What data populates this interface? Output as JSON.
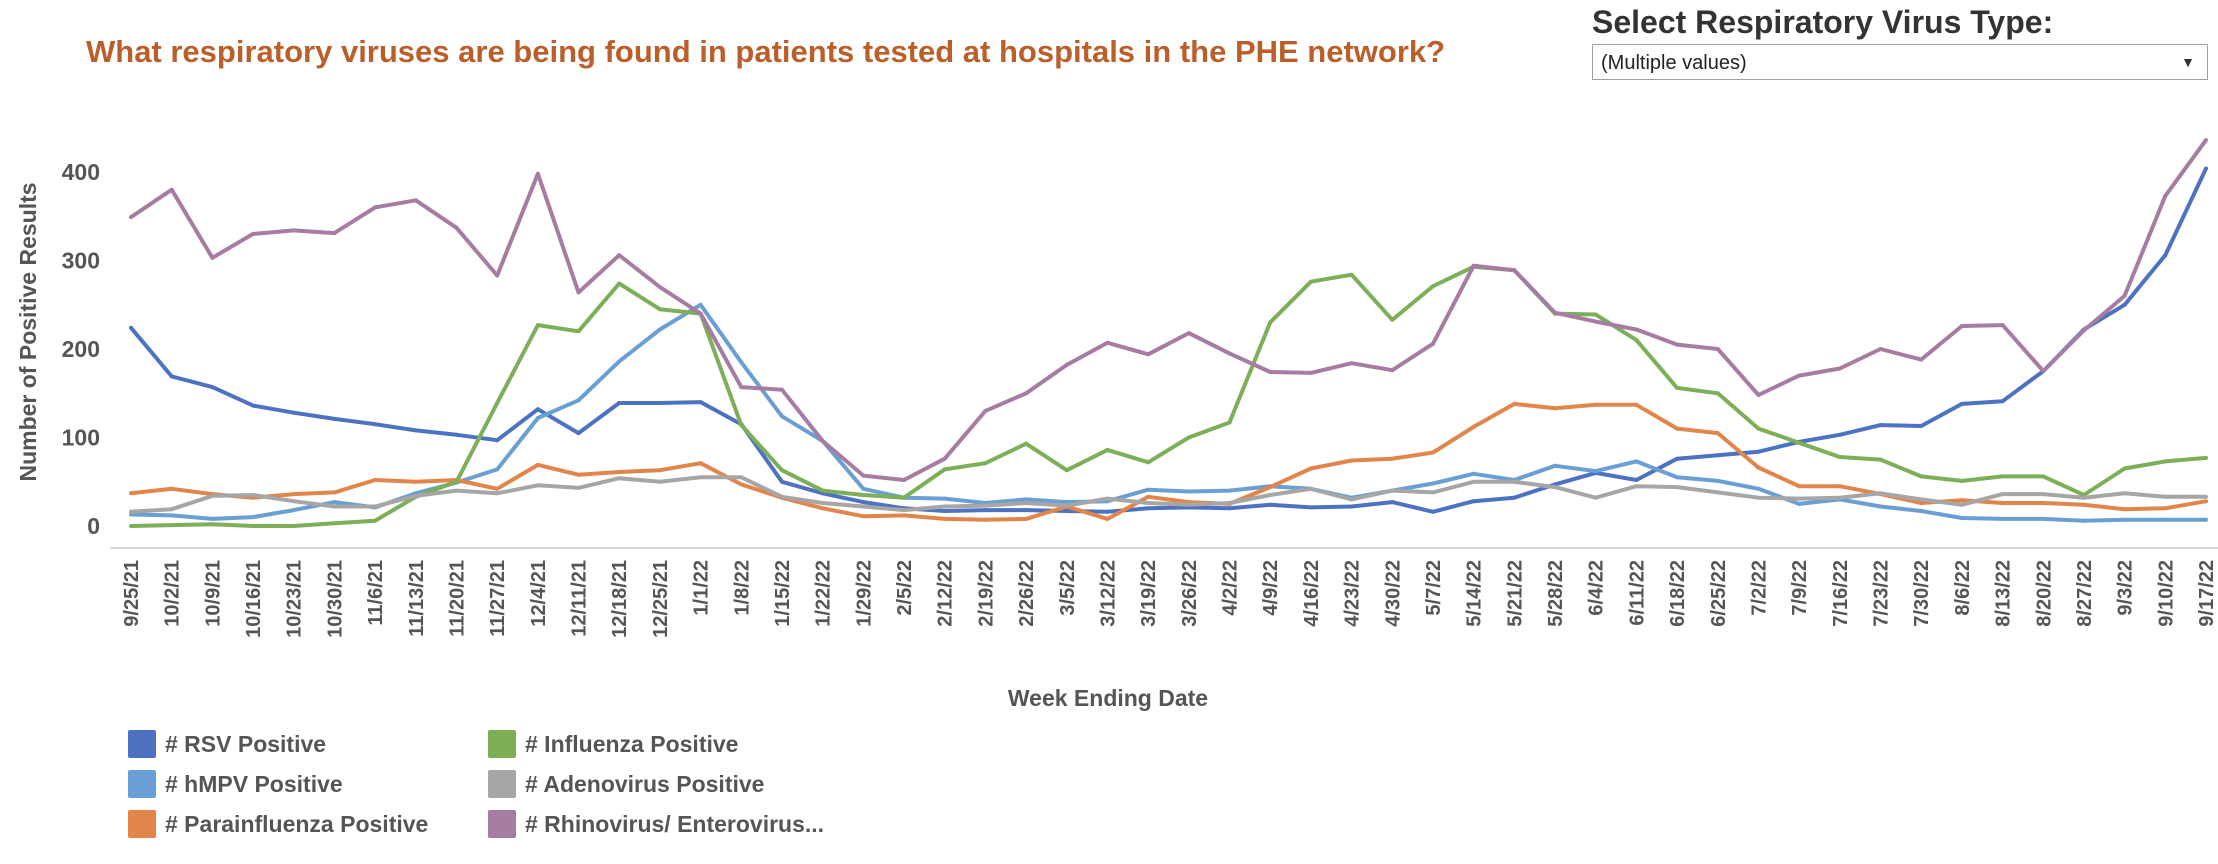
{
  "header": {
    "title": "What respiratory viruses are being found in patients tested at hospitals in the PHE network?"
  },
  "filter": {
    "label": "Select Respiratory Virus Type:",
    "selected_value": "(Multiple values)",
    "dropdown_icon": "caret-down-icon"
  },
  "chart_data": {
    "type": "line",
    "title": "What respiratory viruses are being found in patients tested at hospitals in the PHE network?",
    "xlabel": "Week Ending Date",
    "ylabel": "Number of Positive Results",
    "ylim": [
      -25,
      450
    ],
    "yticks": [
      0,
      100,
      200,
      300,
      400
    ],
    "grid": false,
    "legend_position": "bottom-left",
    "x": [
      "9/25/21",
      "10/2/21",
      "10/9/21",
      "10/16/21",
      "10/23/21",
      "10/30/21",
      "11/6/21",
      "11/13/21",
      "11/20/21",
      "11/27/21",
      "12/4/21",
      "12/11/21",
      "12/18/21",
      "12/25/21",
      "1/1/22",
      "1/8/22",
      "1/15/22",
      "1/22/22",
      "1/29/22",
      "2/5/22",
      "2/12/22",
      "2/19/22",
      "2/26/22",
      "3/5/22",
      "3/12/22",
      "3/19/22",
      "3/26/22",
      "4/2/22",
      "4/9/22",
      "4/16/22",
      "4/23/22",
      "4/30/22",
      "5/7/22",
      "5/14/22",
      "5/21/22",
      "5/28/22",
      "6/4/22",
      "6/11/22",
      "6/18/22",
      "6/25/22",
      "7/2/22",
      "7/9/22",
      "7/16/22",
      "7/23/22",
      "7/30/22",
      "8/6/22",
      "8/13/22",
      "8/20/22",
      "8/27/22",
      "9/3/22",
      "9/10/22",
      "9/17/22"
    ],
    "series": [
      {
        "name": "# RSV Positive",
        "color": "#4e72c2",
        "values": [
          224,
          169,
          157,
          136,
          128,
          121,
          115,
          108,
          103,
          97,
          132,
          105,
          139,
          139,
          140,
          115,
          50,
          37,
          27,
          20,
          17,
          18,
          18,
          17,
          16,
          20,
          21,
          20,
          24,
          21,
          22,
          27,
          16,
          28,
          32,
          47,
          60,
          52,
          76,
          80,
          84,
          95,
          103,
          114,
          113,
          138,
          141,
          175,
          222,
          250,
          306,
          404
        ]
      },
      {
        "name": "# hMPV Positive",
        "color": "#6a9fd4",
        "values": [
          13,
          12,
          8,
          10,
          18,
          27,
          21,
          37,
          49,
          64,
          122,
          142,
          186,
          222,
          250,
          185,
          124,
          96,
          42,
          32,
          31,
          26,
          30,
          27,
          28,
          41,
          39,
          40,
          45,
          42,
          32,
          40,
          48,
          59,
          52,
          68,
          62,
          73,
          55,
          51,
          42,
          25,
          30,
          22,
          17,
          9,
          8,
          8,
          6,
          7,
          7,
          7
        ]
      },
      {
        "name": "# Parainfluenza Positive",
        "color": "#e2854a",
        "values": [
          37,
          42,
          36,
          32,
          36,
          38,
          52,
          50,
          52,
          42,
          69,
          58,
          61,
          63,
          71,
          47,
          32,
          20,
          11,
          12,
          8,
          7,
          8,
          22,
          8,
          33,
          27,
          25,
          44,
          65,
          74,
          76,
          83,
          112,
          138,
          133,
          137,
          137,
          110,
          105,
          66,
          45,
          45,
          36,
          26,
          29,
          26,
          26,
          24,
          19,
          20,
          28
        ]
      },
      {
        "name": "# Influenza Positive",
        "color": "#7caf57",
        "values": [
          0,
          1,
          2,
          0,
          0,
          3,
          6,
          33,
          50,
          139,
          227,
          220,
          274,
          245,
          240,
          114,
          63,
          40,
          35,
          32,
          64,
          71,
          93,
          63,
          86,
          72,
          100,
          117,
          230,
          276,
          284,
          233,
          271,
          293,
          289,
          240,
          239,
          210,
          156,
          150,
          110,
          94,
          78,
          75,
          56,
          51,
          56,
          56,
          35,
          65,
          73,
          77
        ]
      },
      {
        "name": "# Adenovirus Positive",
        "color": "#a6a6a6",
        "values": [
          16,
          19,
          34,
          35,
          28,
          22,
          22,
          34,
          40,
          37,
          46,
          43,
          54,
          50,
          55,
          55,
          33,
          26,
          22,
          18,
          22,
          23,
          26,
          23,
          31,
          26,
          24,
          26,
          35,
          42,
          30,
          40,
          38,
          50,
          50,
          44,
          32,
          45,
          44,
          38,
          32,
          31,
          32,
          37,
          30,
          24,
          36,
          36,
          32,
          37,
          33,
          33
        ]
      },
      {
        "name": "# Rhinovirus/ Enterovirus...",
        "color": "#a67ca2",
        "values": [
          349,
          380,
          303,
          330,
          334,
          331,
          360,
          368,
          337,
          283,
          398,
          264,
          306,
          270,
          240,
          157,
          154,
          96,
          57,
          52,
          76,
          130,
          150,
          182,
          207,
          194,
          218,
          195,
          174,
          173,
          184,
          176,
          206,
          294,
          289,
          241,
          231,
          222,
          205,
          200,
          148,
          170,
          178,
          200,
          188,
          226,
          227,
          175,
          221,
          260,
          373,
          436
        ]
      }
    ]
  },
  "legend": {
    "items": [
      {
        "label": "# RSV Positive",
        "color": "#4e72c2"
      },
      {
        "label": "# hMPV Positive",
        "color": "#6a9fd4"
      },
      {
        "label": "# Parainfluenza Positive",
        "color": "#e2854a"
      },
      {
        "label": "# Influenza Positive",
        "color": "#7caf57"
      },
      {
        "label": "# Adenovirus Positive",
        "color": "#a6a6a6"
      },
      {
        "label": "# Rhinovirus/ Enterovirus...",
        "color": "#a67ca2"
      }
    ]
  }
}
